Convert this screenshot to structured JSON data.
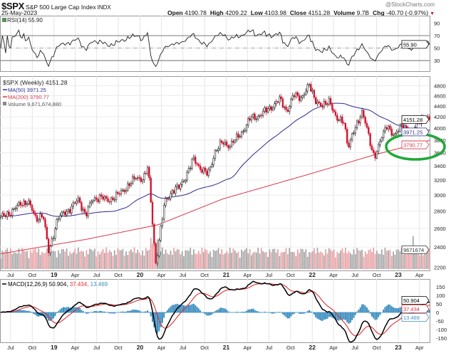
{
  "header": {
    "symbol": "$SPX",
    "name": "S&P 500 Large Cap Index",
    "exchange": "INDX",
    "date": "25-May-2023",
    "watermark": "@StockCharts.com",
    "quote": [
      {
        "label": "Open",
        "value": "4190.78"
      },
      {
        "label": "High",
        "value": "4209.22"
      },
      {
        "label": "Low",
        "value": "4103.98"
      },
      {
        "label": "Close",
        "value": "4151.28"
      },
      {
        "label": "Volume",
        "value": "9.7B"
      },
      {
        "label": "Chg",
        "value": "-40.70 (-0.97%)"
      }
    ],
    "change_direction": "down"
  },
  "x_ticks": [
    {
      "label": "Jul",
      "date": "2018-07-16"
    },
    {
      "label": "Oct",
      "date": "2018-10-16"
    },
    {
      "label": "19",
      "date": "2019-01-16"
    },
    {
      "label": "Apr",
      "date": "2019-04-16"
    },
    {
      "label": "Jul",
      "date": "2019-07-16"
    },
    {
      "label": "Oct",
      "date": "2019-10-16"
    },
    {
      "label": "20",
      "date": "2020-01-16"
    },
    {
      "label": "Apr",
      "date": "2020-04-16"
    },
    {
      "label": "Jul",
      "date": "2020-07-16"
    },
    {
      "label": "Oct",
      "date": "2020-10-16"
    },
    {
      "label": "21",
      "date": "2021-01-16"
    },
    {
      "label": "Apr",
      "date": "2021-04-16"
    },
    {
      "label": "Jul",
      "date": "2021-07-16"
    },
    {
      "label": "Oct",
      "date": "2021-10-16"
    },
    {
      "label": "22",
      "date": "2022-01-16"
    },
    {
      "label": "Apr",
      "date": "2022-04-16"
    },
    {
      "label": "Jul",
      "date": "2022-07-16"
    },
    {
      "label": "Oct",
      "date": "2022-10-16"
    },
    {
      "label": "23",
      "date": "2023-01-16"
    },
    {
      "label": "Apr",
      "date": "2023-04-16"
    }
  ],
  "x_range": [
    "2018-06-01",
    "2023-05-29"
  ],
  "chart_data": [
    {
      "type": "line",
      "panel": "rsi",
      "legend": "RSI(14) 55.90",
      "value_label": "55.90",
      "yticks": [
        90,
        70,
        50,
        30
      ],
      "ylim": [
        13,
        102
      ],
      "reference_lines": [
        70,
        50,
        30
      ],
      "overbought_fill_color": "#5e8f5a"
    },
    {
      "type": "candlestick",
      "panel": "price",
      "scale": "log",
      "frequency": "weekly",
      "legend": {
        "price": "$SPX (Weekly) 4151.28",
        "ma50": "MA(50) 3971.25",
        "ma200": "MA(200) 3790.77",
        "volume": "Volume 9,671,674,880"
      },
      "value_labels": {
        "close": "4151.28",
        "ma50": "3971.25",
        "ma200": "3790.77",
        "volume": "9671674"
      },
      "yticks": [
        4800,
        4600,
        4400,
        4200,
        4000,
        3800,
        3600,
        3400,
        3200,
        3000,
        2800,
        2600,
        2400,
        2200
      ],
      "ylim": [
        2170,
        5000
      ],
      "colors": {
        "up": "#111111",
        "down": "#d0102a",
        "ma50": "#2b2b8c",
        "ma200": "#d83a4a",
        "volume_up": "#a9a9a9",
        "volume_down": "#eaa3a8",
        "annotation": "#22a83a"
      },
      "closes": [
        {
          "date": "2018-06-01",
          "close": 2718
        },
        {
          "date": "2018-07-31",
          "close": 2816
        },
        {
          "date": "2018-08-31",
          "close": 2902
        },
        {
          "date": "2018-09-28",
          "close": 2914
        },
        {
          "date": "2018-10-31",
          "close": 2712
        },
        {
          "date": "2018-11-30",
          "close": 2760
        },
        {
          "date": "2018-12-24",
          "close": 2351
        },
        {
          "date": "2019-01-31",
          "close": 2704
        },
        {
          "date": "2019-02-28",
          "close": 2784
        },
        {
          "date": "2019-03-29",
          "close": 2834
        },
        {
          "date": "2019-04-30",
          "close": 2946
        },
        {
          "date": "2019-05-31",
          "close": 2752
        },
        {
          "date": "2019-06-28",
          "close": 2942
        },
        {
          "date": "2019-07-31",
          "close": 2980
        },
        {
          "date": "2019-08-30",
          "close": 2926
        },
        {
          "date": "2019-09-30",
          "close": 2977
        },
        {
          "date": "2019-10-31",
          "close": 3038
        },
        {
          "date": "2019-11-29",
          "close": 3141
        },
        {
          "date": "2019-12-31",
          "close": 3231
        },
        {
          "date": "2020-01-31",
          "close": 3226
        },
        {
          "date": "2020-02-19",
          "close": 3386
        },
        {
          "date": "2020-03-23",
          "close": 2237
        },
        {
          "date": "2020-04-30",
          "close": 2912
        },
        {
          "date": "2020-05-29",
          "close": 3044
        },
        {
          "date": "2020-06-30",
          "close": 3100
        },
        {
          "date": "2020-07-31",
          "close": 3271
        },
        {
          "date": "2020-08-31",
          "close": 3500
        },
        {
          "date": "2020-09-30",
          "close": 3363
        },
        {
          "date": "2020-10-30",
          "close": 3270
        },
        {
          "date": "2020-11-30",
          "close": 3622
        },
        {
          "date": "2020-12-31",
          "close": 3756
        },
        {
          "date": "2021-01-29",
          "close": 3714
        },
        {
          "date": "2021-02-26",
          "close": 3811
        },
        {
          "date": "2021-03-31",
          "close": 3973
        },
        {
          "date": "2021-04-30",
          "close": 4181
        },
        {
          "date": "2021-05-28",
          "close": 4204
        },
        {
          "date": "2021-06-30",
          "close": 4298
        },
        {
          "date": "2021-07-30",
          "close": 4395
        },
        {
          "date": "2021-08-31",
          "close": 4523
        },
        {
          "date": "2021-09-30",
          "close": 4308
        },
        {
          "date": "2021-10-29",
          "close": 4605
        },
        {
          "date": "2021-11-30",
          "close": 4567
        },
        {
          "date": "2022-01-03",
          "close": 4796
        },
        {
          "date": "2022-01-31",
          "close": 4516
        },
        {
          "date": "2022-02-28",
          "close": 4374
        },
        {
          "date": "2022-03-31",
          "close": 4530
        },
        {
          "date": "2022-04-29",
          "close": 4132
        },
        {
          "date": "2022-05-31",
          "close": 4132
        },
        {
          "date": "2022-06-17",
          "close": 3675
        },
        {
          "date": "2022-07-29",
          "close": 4130
        },
        {
          "date": "2022-08-16",
          "close": 4305
        },
        {
          "date": "2022-09-30",
          "close": 3586
        },
        {
          "date": "2022-10-12",
          "close": 3577
        },
        {
          "date": "2022-11-30",
          "close": 4080
        },
        {
          "date": "2022-12-30",
          "close": 3840
        },
        {
          "date": "2023-01-31",
          "close": 4077
        },
        {
          "date": "2023-02-28",
          "close": 3970
        },
        {
          "date": "2023-03-13",
          "close": 3855
        },
        {
          "date": "2023-03-31",
          "close": 4109
        },
        {
          "date": "2023-04-28",
          "close": 4169
        },
        {
          "date": "2023-05-25",
          "close": 4151
        }
      ],
      "ma200": [
        {
          "date": "2018-06-01",
          "value": 2330
        },
        {
          "date": "2019-06-01",
          "value": 2480
        },
        {
          "date": "2020-04-01",
          "value": 2640
        },
        {
          "date": "2021-01-01",
          "value": 2950
        },
        {
          "date": "2022-01-01",
          "value": 3280
        },
        {
          "date": "2022-10-01",
          "value": 3560
        },
        {
          "date": "2023-05-25",
          "value": 3790
        }
      ]
    },
    {
      "type": "line",
      "panel": "macd",
      "legend_name": "MACD(12,26,9)",
      "legend_values": [
        "50.904",
        "37.434",
        "13.469"
      ],
      "yticks": [
        150,
        100,
        50,
        0,
        -50,
        -100,
        -150
      ],
      "ylim": [
        -175,
        196
      ],
      "colors": {
        "macd": "#000000",
        "signal": "#e03030",
        "histogram": "#3a8dbf"
      }
    }
  ]
}
